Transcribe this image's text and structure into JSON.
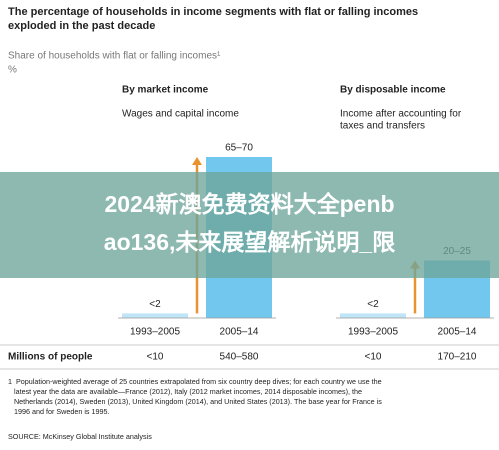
{
  "chart_data": {
    "type": "bar",
    "title": [
      "The percentage of households in income segments with flat or falling incomes",
      "exploded in the past decade"
    ],
    "subtitle": "Share of households with flat or falling incomes¹",
    "unit": "%",
    "color": "#72c7ee",
    "small_color": "#bfe5f6",
    "arrow_color": "#e8932e",
    "panels": [
      {
        "title": "By market income",
        "subtitle": [
          "Wages and capital income"
        ],
        "categories": [
          "1993–2005",
          "2005–14"
        ],
        "values": [
          2,
          70
        ],
        "value_labels": [
          "<2",
          "65–70"
        ],
        "people": [
          "<10",
          "540–580"
        ]
      },
      {
        "title": "By disposable income",
        "subtitle": [
          "Income after accounting for",
          "taxes and transfers"
        ],
        "categories": [
          "1993–2005",
          "2005–14"
        ],
        "values": [
          2,
          25
        ],
        "value_labels": [
          "<2",
          "20–25"
        ],
        "people": [
          "<10",
          "170–210"
        ]
      }
    ],
    "people_label": "Millions of people",
    "footnote": [
      "1  Population-weighted average of 25 countries extrapolated from six country deep dives; for each country we use the",
      "   latest year the data are available—France (2012), Italy (2012 market incomes, 2014 disposable incomes), the",
      "   Netherlands (2014), Sweden (2013), United Kingdom (2014), and United States (2013). The base year for France is",
      "   1996 and for Sweden is 1995."
    ],
    "source": "SOURCE: McKinsey Global Institute analysis"
  },
  "overlay": {
    "lines": [
      "2024新澳免费资料大全penb",
      "ao136,未来展望解析说明_限"
    ]
  }
}
